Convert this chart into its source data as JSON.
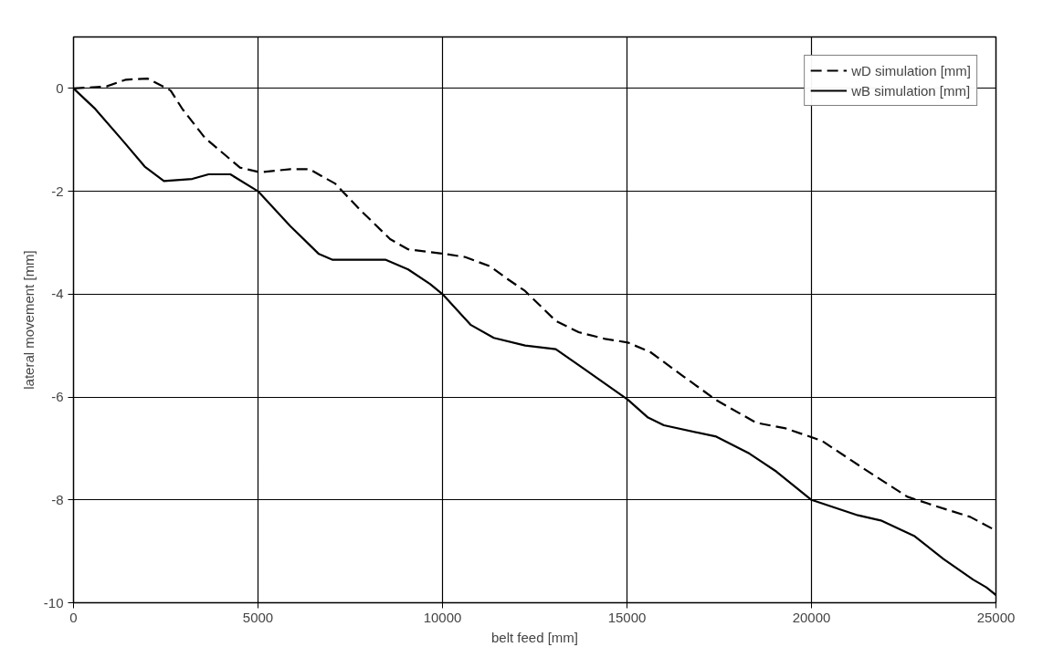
{
  "chart_data": {
    "type": "line",
    "xlabel": "belt feed [mm]",
    "ylabel": "lateral movement [mm]",
    "xlim": [
      0,
      25000
    ],
    "ylim": [
      -10,
      1
    ],
    "xticks": [
      0,
      5000,
      10000,
      15000,
      20000,
      25000
    ],
    "yticks": [
      -10,
      -8,
      -6,
      -4,
      -2,
      0
    ],
    "grid": true,
    "legend": "top right",
    "marker": "none",
    "series": [
      {
        "name": "wD simulation [mm]",
        "color": "#000000",
        "line_style": "dashed",
        "x": [
          0,
          900,
          1420,
          2010,
          2630,
          2960,
          3560,
          4510,
          5050,
          5880,
          6390,
          7090,
          7780,
          8580,
          9070,
          10100,
          10620,
          11290,
          11730,
          12240,
          13070,
          13690,
          14410,
          15020,
          15640,
          16550,
          17420,
          18500,
          19300,
          20280,
          21370,
          22600,
          23320,
          24300,
          24980
        ],
        "values": [
          0,
          0.04,
          0.17,
          0.19,
          -0.04,
          -0.41,
          -0.96,
          -1.54,
          -1.63,
          -1.57,
          -1.57,
          -1.85,
          -2.37,
          -2.93,
          -3.13,
          -3.22,
          -3.28,
          -3.46,
          -3.69,
          -3.94,
          -4.52,
          -4.74,
          -4.87,
          -4.94,
          -5.13,
          -5.61,
          -6.06,
          -6.5,
          -6.61,
          -6.85,
          -7.37,
          -7.94,
          -8.11,
          -8.33,
          -8.59
        ]
      },
      {
        "name": "wB simulation [mm]",
        "color": "#000000",
        "line_style": "solid",
        "x": [
          0,
          590,
          1340,
          1930,
          2450,
          3220,
          3660,
          4250,
          5000,
          5880,
          6650,
          7010,
          8450,
          9070,
          9660,
          10000,
          10770,
          11390,
          12240,
          13070,
          13790,
          14660,
          15020,
          15570,
          16000,
          17420,
          18320,
          19050,
          20000,
          21260,
          21880,
          22780,
          23580,
          24380,
          24740,
          25000
        ],
        "values": [
          0,
          -0.4,
          -1.02,
          -1.52,
          -1.8,
          -1.76,
          -1.67,
          -1.67,
          -2.0,
          -2.68,
          -3.22,
          -3.33,
          -3.33,
          -3.52,
          -3.8,
          -4.0,
          -4.6,
          -4.85,
          -5.0,
          -5.07,
          -5.43,
          -5.87,
          -6.05,
          -6.4,
          -6.55,
          -6.77,
          -7.1,
          -7.45,
          -8.0,
          -8.3,
          -8.4,
          -8.7,
          -9.15,
          -9.55,
          -9.7,
          -9.85
        ]
      }
    ]
  }
}
